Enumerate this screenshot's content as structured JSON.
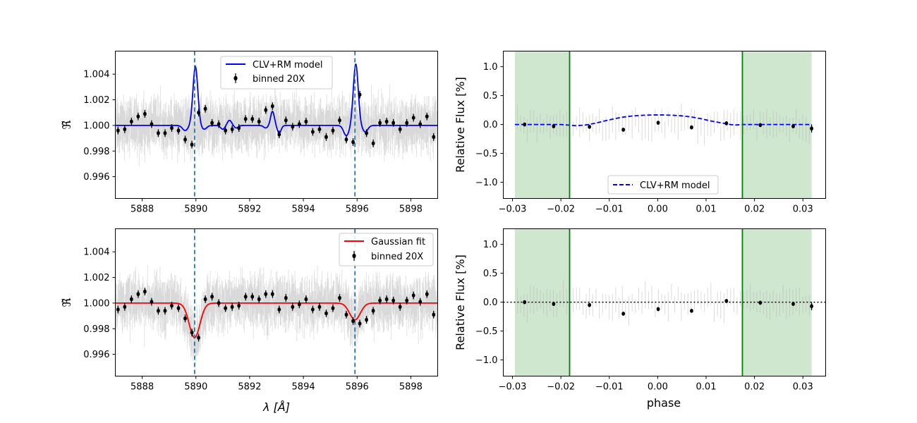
{
  "colors": {
    "model_blue": "#0000ff",
    "fit_red": "#ff0000",
    "vline_dashed": "#1f77b4",
    "contact_green": "#008000",
    "shade_green": "#cfe6cf",
    "binned": "#000000",
    "raw": "#b0b0b0"
  },
  "chart_data": [
    {
      "id": "top-left",
      "type": "line",
      "xlim": [
        5887.0,
        5899.0
      ],
      "ylim": [
        0.9943,
        1.0058
      ],
      "xticks": [
        5888,
        5890,
        5892,
        5894,
        5896,
        5898
      ],
      "xtick_labels": [
        "5888",
        "5890",
        "5892",
        "5894",
        "5896",
        "5898"
      ],
      "yticks": [
        0.996,
        0.998,
        1.0,
        1.002,
        1.004
      ],
      "ytick_labels": [
        "0.996",
        "0.998",
        "1.000",
        "1.002",
        "1.004"
      ],
      "xlabel": "",
      "ylabel": "ℜ̃",
      "vlines": [
        5889.95,
        5895.92
      ],
      "model": {
        "name": "CLV+RM model",
        "kind": "clv",
        "params": {
          "baseline": 1.0
        }
      },
      "binned": {
        "name": "binned 20X",
        "x": [
          5887.1,
          5887.35,
          5887.6,
          5887.85,
          5888.1,
          5888.35,
          5888.6,
          5888.85,
          5889.1,
          5889.35,
          5889.6,
          5889.85,
          5890.1,
          5890.35,
          5890.6,
          5890.85,
          5891.1,
          5891.35,
          5891.6,
          5891.85,
          5892.1,
          5892.35,
          5892.6,
          5892.85,
          5893.1,
          5893.35,
          5893.6,
          5893.85,
          5894.1,
          5894.35,
          5894.6,
          5894.85,
          5895.1,
          5895.35,
          5895.6,
          5895.85,
          5896.1,
          5896.35,
          5896.6,
          5896.85,
          5897.1,
          5897.35,
          5897.6,
          5897.85,
          5898.1,
          5898.35,
          5898.6,
          5898.85
        ],
        "y": [
          0.9996,
          0.9997,
          1.0003,
          1.0007,
          1.0009,
          1.0001,
          0.9994,
          0.9994,
          0.9998,
          0.9996,
          0.9989,
          0.9985,
          1.001,
          1.0013,
          1.0002,
          1.0001,
          0.9996,
          0.9997,
          0.9998,
          1.0005,
          1.0005,
          1.0003,
          1.0012,
          1.0015,
          0.9993,
          1.0004,
          0.9999,
          1.0001,
          1.0003,
          0.9995,
          0.9997,
          0.9991,
          0.9996,
          1.0004,
          0.9989,
          0.9987,
          1.0024,
          0.9994,
          0.9986,
          1.0002,
          1.0003,
          1.0002,
          0.9997,
          1.0002,
          1.0006,
          1.0001,
          1.0007,
          0.9991
        ],
        "yerr": 0.0003
      },
      "legend": {
        "placement": "top-center",
        "entries": [
          "CLV+RM model",
          "binned 20X"
        ]
      }
    },
    {
      "id": "top-right",
      "type": "line",
      "xlim": [
        -0.0319,
        0.0347
      ],
      "ylim": [
        -1.28,
        1.27
      ],
      "xticks": [
        -0.03,
        -0.02,
        -0.01,
        0.0,
        0.01,
        0.02,
        0.03
      ],
      "xtick_labels": [
        "−0.03",
        "−0.02",
        "−0.01",
        "0.00",
        "0.01",
        "0.02",
        "0.03"
      ],
      "yticks": [
        -1.0,
        -0.5,
        0.0,
        0.5,
        1.0
      ],
      "ytick_labels": [
        "−1.0",
        "−0.5",
        "0.0",
        "0.5",
        "1.0"
      ],
      "xlabel": "",
      "ylabel": "Relative Flux [%]",
      "shaded": [
        [
          -0.0295,
          -0.0182
        ],
        [
          0.0175,
          0.0318
        ]
      ],
      "contacts": [
        -0.0182,
        0.0175
      ],
      "model": {
        "name": "CLV+RM model",
        "x": [
          -0.0295,
          -0.025,
          -0.02,
          -0.017,
          -0.015,
          -0.013,
          -0.011,
          -0.009,
          -0.007,
          -0.005,
          -0.003,
          -0.001,
          0.0,
          0.001,
          0.003,
          0.005,
          0.007,
          0.009,
          0.011,
          0.013,
          0.015,
          0.016,
          0.0175,
          0.02,
          0.025,
          0.0318
        ],
        "y": [
          0.0,
          0.0,
          0.0,
          -0.02,
          -0.01,
          0.02,
          0.06,
          0.1,
          0.13,
          0.15,
          0.16,
          0.165,
          0.165,
          0.165,
          0.16,
          0.15,
          0.13,
          0.1,
          0.06,
          0.03,
          0.0,
          -0.01,
          0.0,
          0.0,
          0.0,
          0.0
        ]
      },
      "binned": {
        "x": [
          -0.0275,
          -0.0215,
          -0.0141,
          -0.0071,
          0.0001,
          0.007,
          0.0142,
          0.0212,
          0.028,
          0.0318
        ],
        "y": [
          0.0,
          -0.03,
          -0.04,
          -0.09,
          0.03,
          -0.05,
          0.02,
          -0.01,
          -0.03,
          -0.07
        ],
        "yerr": [
          0.02,
          0.02,
          0.03,
          0.02,
          0.03,
          0.02,
          0.02,
          0.02,
          0.02,
          0.07
        ]
      },
      "legend": {
        "placement": "bottom-center",
        "entries": [
          "CLV+RM model"
        ]
      }
    },
    {
      "id": "bottom-left",
      "type": "line",
      "xlim": [
        5887.0,
        5899.0
      ],
      "ylim": [
        0.9943,
        1.0058
      ],
      "xticks": [
        5888,
        5890,
        5892,
        5894,
        5896,
        5898
      ],
      "xtick_labels": [
        "5888",
        "5890",
        "5892",
        "5894",
        "5896",
        "5898"
      ],
      "yticks": [
        0.996,
        0.998,
        1.0,
        1.002,
        1.004
      ],
      "ytick_labels": [
        "0.996",
        "0.998",
        "1.000",
        "1.002",
        "1.004"
      ],
      "xlabel": "λ [Å]",
      "ylabel": "ℜ̃",
      "vlines": [
        5889.95,
        5895.92
      ],
      "model": {
        "name": "Gaussian fit",
        "kind": "gauss",
        "params": {
          "baseline": 1.0,
          "centers": [
            5889.95,
            5895.92
          ],
          "depths": [
            0.0027,
            0.0013
          ],
          "sigma": 0.2
        }
      },
      "binned": {
        "name": "binned 20X",
        "x": [
          5887.1,
          5887.35,
          5887.6,
          5887.85,
          5888.1,
          5888.35,
          5888.6,
          5888.85,
          5889.1,
          5889.35,
          5889.6,
          5889.85,
          5890.1,
          5890.35,
          5890.6,
          5890.85,
          5891.1,
          5891.35,
          5891.6,
          5891.85,
          5892.1,
          5892.35,
          5892.6,
          5892.85,
          5893.1,
          5893.35,
          5893.6,
          5893.85,
          5894.1,
          5894.35,
          5894.6,
          5894.85,
          5895.1,
          5895.35,
          5895.6,
          5895.85,
          5896.1,
          5896.35,
          5896.6,
          5896.85,
          5897.1,
          5897.35,
          5897.6,
          5897.85,
          5898.1,
          5898.35,
          5898.6,
          5898.85
        ],
        "y": [
          0.9995,
          0.9997,
          1.0003,
          1.0007,
          1.0009,
          1.0001,
          0.9994,
          0.9994,
          0.9998,
          0.9996,
          0.9988,
          0.9977,
          0.9973,
          1.0003,
          1.0005,
          1.0,
          0.9996,
          0.9997,
          0.9998,
          1.0005,
          1.0005,
          1.0003,
          1.0007,
          1.0007,
          0.9995,
          1.0004,
          0.9997,
          0.9999,
          1.0003,
          0.9995,
          0.9997,
          0.9992,
          0.9996,
          1.0004,
          0.9991,
          0.9986,
          0.9984,
          0.9987,
          0.9994,
          1.0002,
          1.0003,
          1.0002,
          0.9997,
          1.0002,
          1.0006,
          1.0001,
          1.0007,
          0.9991
        ],
        "yerr": 0.0003
      },
      "legend": {
        "placement": "top-right",
        "entries": [
          "Gaussian fit",
          "binned 20X"
        ]
      }
    },
    {
      "id": "bottom-right",
      "type": "line",
      "xlim": [
        -0.0319,
        0.0347
      ],
      "ylim": [
        -1.28,
        1.27
      ],
      "xticks": [
        -0.03,
        -0.02,
        -0.01,
        0.0,
        0.01,
        0.02,
        0.03
      ],
      "xtick_labels": [
        "−0.03",
        "−0.02",
        "−0.01",
        "0.00",
        "0.01",
        "0.02",
        "0.03"
      ],
      "yticks": [
        -1.0,
        -0.5,
        0.0,
        0.5,
        1.0
      ],
      "ytick_labels": [
        "−1.0",
        "−0.5",
        "0.0",
        "0.5",
        "1.0"
      ],
      "xlabel": "phase",
      "ylabel": "Relative Flux [%]",
      "shaded": [
        [
          -0.0295,
          -0.0182
        ],
        [
          0.0175,
          0.0318
        ]
      ],
      "contacts": [
        -0.0182,
        0.0175
      ],
      "hline": 0.0,
      "binned": {
        "x": [
          -0.0275,
          -0.0215,
          -0.0141,
          -0.0071,
          0.0001,
          0.007,
          0.0142,
          0.0212,
          0.028,
          0.0318
        ],
        "y": [
          0.0,
          -0.03,
          -0.05,
          -0.2,
          -0.12,
          -0.15,
          0.02,
          -0.01,
          -0.03,
          -0.07
        ],
        "yerr": [
          0.02,
          0.02,
          0.03,
          0.02,
          0.03,
          0.02,
          0.02,
          0.02,
          0.02,
          0.07
        ]
      }
    }
  ]
}
